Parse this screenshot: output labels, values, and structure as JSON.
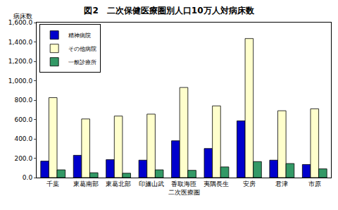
{
  "chart_data": {
    "type": "bar",
    "title": "図2　二次保健医療圏別人口10万人対病床数",
    "y_label": "病床数",
    "x_label": "二次医療圏",
    "categories": [
      "千葉",
      "東葛南部",
      "東葛北部",
      "印旛山武",
      "香取海匝",
      "夷隅長生",
      "安房",
      "君津",
      "市原"
    ],
    "series": [
      {
        "name": "精神病院",
        "color": "#0000cc",
        "values": [
          170,
          230,
          185,
          180,
          380,
          300,
          585,
          180,
          135
        ]
      },
      {
        "name": "その他病院",
        "color": "#ffffcc",
        "values": [
          825,
          605,
          635,
          655,
          930,
          740,
          1435,
          690,
          710
        ]
      },
      {
        "name": "一般診療所",
        "color": "#339966",
        "values": [
          80,
          50,
          45,
          80,
          75,
          110,
          165,
          145,
          90
        ]
      }
    ],
    "ylim": [
      0,
      1600
    ],
    "yticks": [
      {
        "value": 0,
        "label": "0.0"
      },
      {
        "value": 200,
        "label": "200.0"
      },
      {
        "value": 400,
        "label": "400.0"
      },
      {
        "value": 600,
        "label": "600.0"
      },
      {
        "value": 800,
        "label": "800.0"
      },
      {
        "value": 1000,
        "label": "1,000.0"
      },
      {
        "value": 1200,
        "label": "1,200.0"
      },
      {
        "value": 1400,
        "label": "1,400.0"
      },
      {
        "value": 1600,
        "label": "1,600.0"
      }
    ],
    "grid": false,
    "legend": "upper left"
  }
}
